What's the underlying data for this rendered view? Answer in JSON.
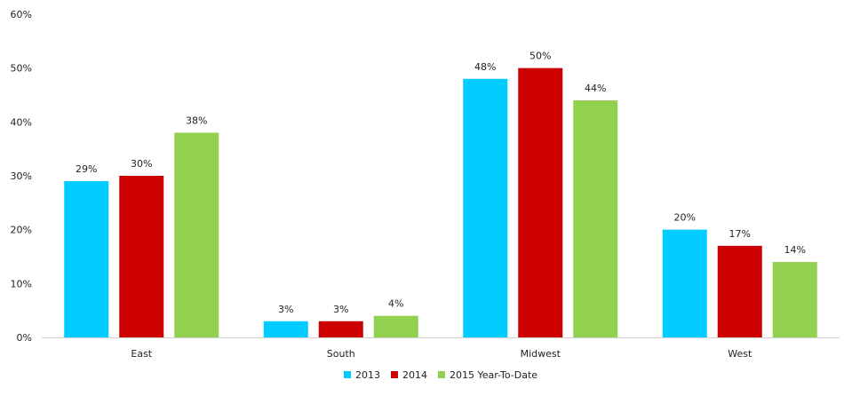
{
  "chart_data": {
    "type": "bar",
    "categories": [
      "East",
      "South",
      "Midwest",
      "West"
    ],
    "series": [
      {
        "name": "2013",
        "color": "#00ccff",
        "values": [
          29,
          3,
          48,
          20
        ],
        "labels": [
          "29%",
          "3%",
          "48%",
          "20%"
        ]
      },
      {
        "name": "2014",
        "color": "#cc0000",
        "values": [
          30,
          3,
          50,
          17
        ],
        "labels": [
          "30%",
          "3%",
          "50%",
          "17%"
        ]
      },
      {
        "name": "2015 Year-To-Date",
        "color": "#92d050",
        "values": [
          38,
          4,
          44,
          14
        ],
        "labels": [
          "38%",
          "4%",
          "44%",
          "14%"
        ]
      }
    ],
    "ylim": [
      0,
      60
    ],
    "yticks": [
      "0%",
      "10%",
      "20%",
      "30%",
      "40%",
      "50%",
      "60%"
    ],
    "grid": false,
    "legend": "bottom"
  }
}
